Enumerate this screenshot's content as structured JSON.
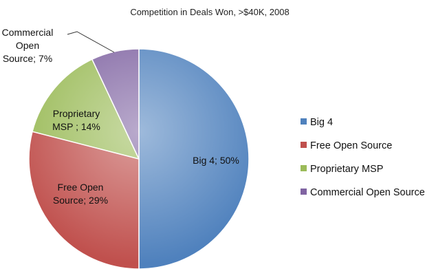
{
  "chart_data": {
    "type": "pie",
    "title": "Competition in Deals Won,  >$40K, 2008",
    "slices": [
      {
        "name": "Big 4",
        "value": 50,
        "label_lines": [
          "Big 4; 50%"
        ],
        "color": "#4f81bd"
      },
      {
        "name": "Free Open Source",
        "value": 29,
        "label_lines": [
          "Free Open",
          "Source; 29%"
        ],
        "color": "#c0504d"
      },
      {
        "name": "Proprietary MSP",
        "value": 14,
        "label_lines": [
          "Proprietary",
          "MSP ; 14%"
        ],
        "color": "#9bbb59"
      },
      {
        "name": "Commercial Open Source",
        "value": 7,
        "label_lines": [
          "Commercial",
          "Open",
          "Source; 7%"
        ],
        "color": "#8064a2"
      }
    ],
    "legend": {
      "position": "right",
      "entries": [
        "Big 4",
        "Free Open Source",
        "Proprietary MSP",
        "Commercial Open Source"
      ]
    }
  }
}
